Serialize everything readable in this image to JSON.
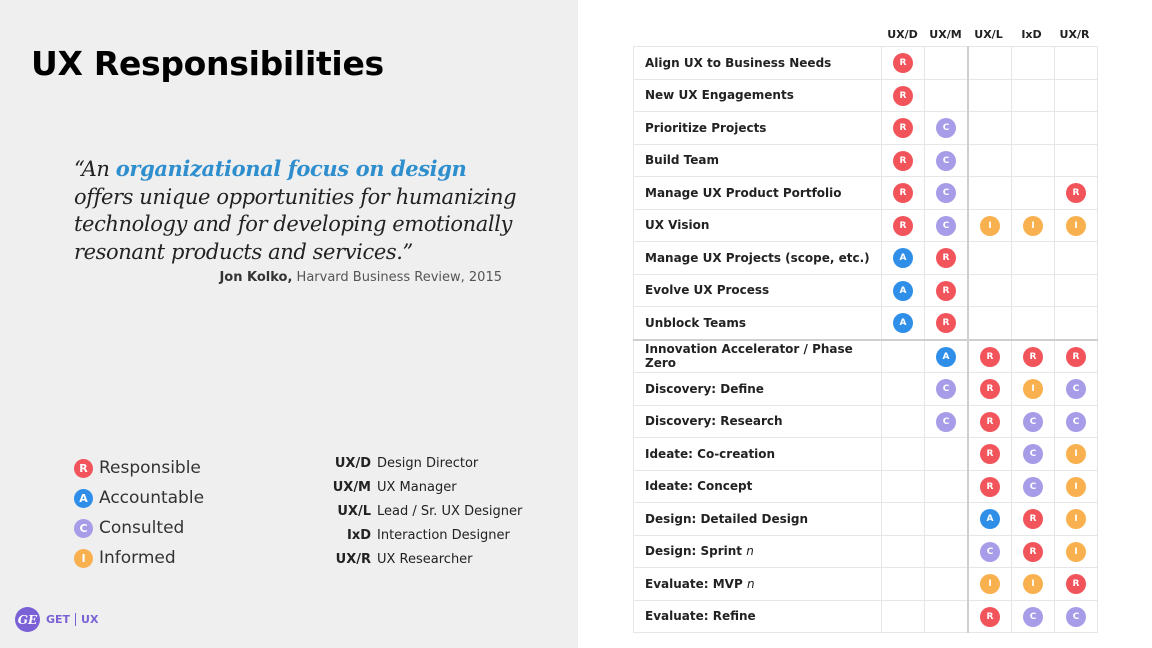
{
  "title": "UX Responsibilities",
  "quote": {
    "pre": "“An ",
    "highlight": "organizational focus on design",
    "post": " offers unique opportunities for humanizing technology and for developing emotionally resonant products and services.”",
    "author": "Jon Kolko,",
    "source": " Harvard Business Review, 2015"
  },
  "colors": {
    "R": "#f2545b",
    "A": "#2f8fe8",
    "C": "#a79ce8",
    "I": "#f9b04f",
    "brand": "#7b61d6",
    "highlight": "#2f8fce"
  },
  "legend": [
    {
      "code": "R",
      "letter": "R",
      "label": "Responsible"
    },
    {
      "code": "A",
      "letter": "A",
      "label": "Accountable"
    },
    {
      "code": "C",
      "letter": "C",
      "label": "Consulted"
    },
    {
      "code": "I",
      "letter": "I",
      "label": "Informed"
    }
  ],
  "roles": [
    {
      "abbr": "UX/D",
      "name": "Design Director"
    },
    {
      "abbr": "UX/M",
      "name": "UX Manager"
    },
    {
      "abbr": "UX/L",
      "name": "Lead / Sr. UX Designer"
    },
    {
      "abbr": "IxD",
      "name": "Interaction Designer"
    },
    {
      "abbr": "UX/R",
      "name": "UX Researcher"
    }
  ],
  "brand": {
    "logo": "GE",
    "get": "GET",
    "ux": "UX"
  },
  "columns": [
    "UX/D",
    "UX/M",
    "UX/L",
    "IxD",
    "UX/R"
  ],
  "rows": [
    {
      "task": "Align UX to Business Needs",
      "cells": [
        "R",
        "",
        "",
        "",
        ""
      ]
    },
    {
      "task": "New UX Engagements",
      "cells": [
        "R",
        "",
        "",
        "",
        ""
      ]
    },
    {
      "task": "Prioritize Projects",
      "cells": [
        "R",
        "C",
        "",
        "",
        ""
      ]
    },
    {
      "task": "Build Team",
      "cells": [
        "R",
        "C",
        "",
        "",
        ""
      ]
    },
    {
      "task": "Manage UX Product Portfolio",
      "cells": [
        "R",
        "C",
        "",
        "",
        "R"
      ]
    },
    {
      "task": "UX Vision",
      "cells": [
        "R",
        "C",
        "I",
        "I",
        "I"
      ]
    },
    {
      "task": "Manage UX Projects (scope, etc.)",
      "cells": [
        "A",
        "R",
        "",
        "",
        ""
      ]
    },
    {
      "task": "Evolve UX Process",
      "cells": [
        "A",
        "R",
        "",
        "",
        ""
      ]
    },
    {
      "task": "Unblock Teams",
      "cells": [
        "A",
        "R",
        "",
        "",
        ""
      ]
    },
    {
      "task": "Innovation Accelerator / Phase Zero",
      "cells": [
        "",
        "A",
        "R",
        "R",
        "R"
      ]
    },
    {
      "task": "Discovery: Define",
      "cells": [
        "",
        "C",
        "R",
        "I",
        "C"
      ]
    },
    {
      "task": "Discovery: Research",
      "cells": [
        "",
        "C",
        "R",
        "C",
        "C"
      ]
    },
    {
      "task": "Ideate: Co-creation",
      "cells": [
        "",
        "",
        "R",
        "C",
        "I"
      ]
    },
    {
      "task": "Ideate: Concept",
      "cells": [
        "",
        "",
        "R",
        "C",
        "I"
      ]
    },
    {
      "task": "Design: Detailed Design",
      "cells": [
        "",
        "",
        "A",
        "R",
        "I"
      ]
    },
    {
      "task": "Design: Sprint",
      "suffix": "n",
      "cells": [
        "",
        "",
        "C",
        "R",
        "I"
      ]
    },
    {
      "task": "Evaluate: MVP",
      "suffix": "n",
      "cells": [
        "",
        "",
        "I",
        "I",
        "R"
      ]
    },
    {
      "task": "Evaluate: Refine",
      "cells": [
        "",
        "",
        "R",
        "C",
        "C"
      ]
    }
  ]
}
